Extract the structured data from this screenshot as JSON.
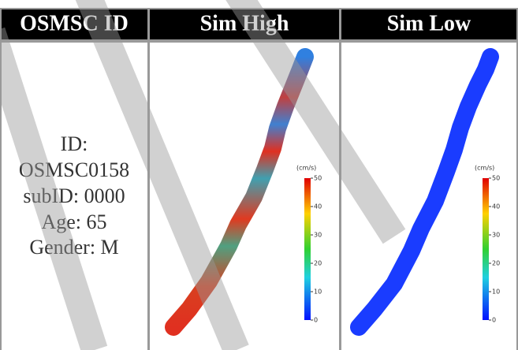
{
  "table": {
    "header": [
      "OSMSC ID",
      "Sim High",
      "Sim Low"
    ],
    "rows": [
      [
        [
          "ID:",
          "OSMSC0158",
          "subID: 0000",
          "Age: 65",
          "Gender: M"
        ]
      ]
    ]
  },
  "colorbar": {
    "unit": "(cm/s)",
    "ticks": [
      "50",
      "40",
      "30",
      "20",
      "10",
      "0"
    ]
  }
}
